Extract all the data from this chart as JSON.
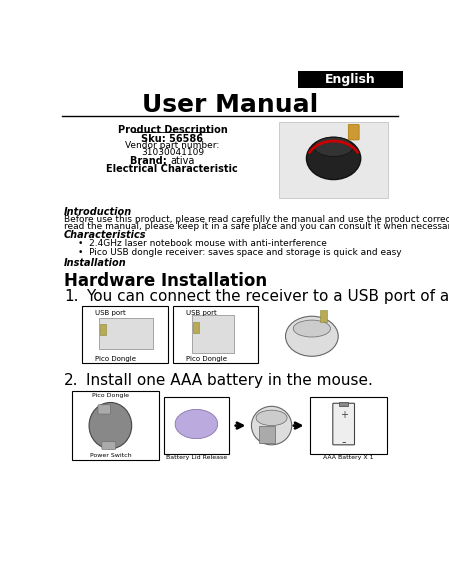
{
  "bg_color": "#ffffff",
  "header_bg": "#000000",
  "header_text": "English",
  "header_text_color": "#ffffff",
  "title": "User Manual",
  "product_desc_bold": "Product Description",
  "sku_bold": "Sku: 56586",
  "vendor": "Vendor part number:",
  "vendor_num": "31030041109",
  "brand_label": "Brand: ",
  "brand_val": "ativa",
  "elec_bold": "Electrical Characteristic",
  "intro_label": "Introduction",
  "intro_text1": "Before use this product, please read carefully the manual and use the product correctly. Once you have",
  "intro_text2": "read the manual, please keep it in a safe place and you can consult it when necessary.",
  "char_label": "Characteristics",
  "bullet1": "2.4GHz laser notebook mouse with anti-interference",
  "bullet2": "Pico USB dongle receiver: saves space and storage is quick and easy",
  "install_label": "Installation",
  "hw_install": "Hardware Installation",
  "step1_num": "1.",
  "step1": "You can connect the receiver to a USB port of a PC.",
  "step2_num": "2.",
  "step2": "Install one AAA battery in the mouse.",
  "usb_port": "USB port",
  "pico_dongle": "Pico Dongle",
  "pico_dongle2": "Pico Dongle",
  "power_switch": "Power Switch",
  "battery_lid": "Battery Lid Release",
  "aaa_battery": "AAA Battery X 1",
  "font_size_header": 9,
  "font_size_title": 18,
  "font_size_body": 7,
  "font_size_small": 5,
  "font_size_step": 11,
  "font_size_hw": 12
}
